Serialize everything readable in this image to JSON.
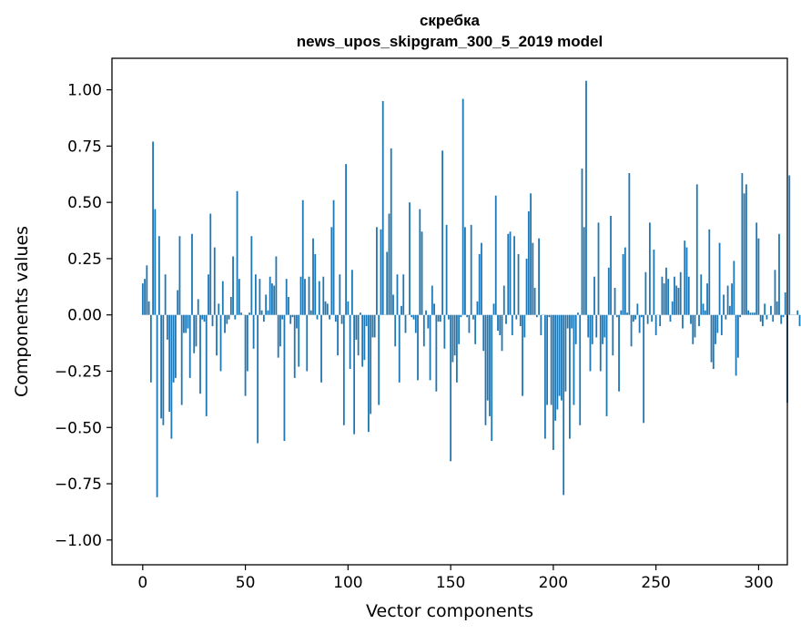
{
  "chart_data": {
    "type": "bar",
    "title": "скребка",
    "subtitle": "news_upos_skipgram_300_5_2019 model",
    "xlabel": "Vector components",
    "ylabel": "Components values",
    "xlim": [
      -15,
      314
    ],
    "ylim": [
      -1.11,
      1.14
    ],
    "xticks": [
      0,
      50,
      100,
      150,
      200,
      250,
      300
    ],
    "xtick_labels": [
      "0",
      "50",
      "100",
      "150",
      "200",
      "250",
      "300"
    ],
    "yticks": [
      1.0,
      0.75,
      0.5,
      0.25,
      0.0,
      -0.25,
      -0.5,
      -0.75,
      -1.0
    ],
    "ytick_labels": [
      "1.00",
      "0.75",
      "0.50",
      "0.25",
      "0.00",
      "−0.25",
      "−0.50",
      "−0.75",
      "−1.00"
    ],
    "bar_color": "#1f77b4",
    "series": [
      {
        "name": "скребка",
        "values": [
          0.14,
          0.16,
          0.22,
          0.06,
          -0.3,
          0.77,
          0.47,
          -0.81,
          0.35,
          -0.46,
          -0.49,
          0.18,
          -0.11,
          -0.43,
          -0.55,
          -0.3,
          -0.28,
          0.11,
          0.35,
          -0.4,
          -0.08,
          -0.08,
          -0.06,
          -0.28,
          0.36,
          -0.17,
          -0.14,
          0.07,
          -0.35,
          -0.02,
          -0.03,
          -0.45,
          0.18,
          0.45,
          -0.05,
          0.3,
          -0.18,
          0.05,
          -0.25,
          0.15,
          -0.08,
          -0.04,
          -0.02,
          0.08,
          0.26,
          -0.02,
          0.55,
          0.16,
          0.01,
          0.0,
          -0.36,
          -0.25,
          0.01,
          0.35,
          -0.15,
          0.18,
          -0.57,
          0.16,
          0.02,
          -0.03,
          0.09,
          0.02,
          0.17,
          0.14,
          0.13,
          0.26,
          -0.19,
          -0.14,
          -0.02,
          -0.56,
          0.16,
          0.08,
          -0.04,
          -0.01,
          -0.28,
          -0.06,
          -0.23,
          0.17,
          0.51,
          0.16,
          -0.25,
          0.17,
          0.02,
          0.34,
          0.27,
          -0.02,
          0.15,
          -0.3,
          0.17,
          0.06,
          0.05,
          -0.02,
          0.39,
          0.51,
          -0.03,
          -0.18,
          0.18,
          -0.04,
          -0.49,
          0.67,
          0.06,
          -0.24,
          0.2,
          -0.53,
          -0.11,
          -0.18,
          0.01,
          -0.23,
          -0.2,
          -0.05,
          -0.52,
          -0.44,
          -0.1,
          -0.1,
          0.39,
          -0.4,
          0.38,
          0.95,
          0.0,
          0.28,
          0.45,
          0.74,
          0.09,
          -0.14,
          0.18,
          -0.3,
          0.04,
          0.18,
          -0.08,
          0.0,
          0.5,
          -0.01,
          -0.02,
          -0.08,
          -0.29,
          0.47,
          0.37,
          -0.14,
          0.02,
          -0.06,
          -0.29,
          0.13,
          0.05,
          -0.34,
          -0.03,
          -0.03,
          0.73,
          -0.15,
          0.4,
          -0.02,
          -0.65,
          -0.21,
          -0.18,
          -0.3,
          -0.13,
          -0.01,
          0.96,
          0.39,
          -0.01,
          -0.08,
          0.4,
          -0.02,
          -0.13,
          0.06,
          0.27,
          0.32,
          -0.16,
          -0.49,
          -0.38,
          -0.45,
          -0.56,
          0.05,
          0.53,
          -0.07,
          -0.09,
          -0.16,
          0.13,
          -0.04,
          0.36,
          0.37,
          -0.09,
          0.35,
          -0.02,
          0.27,
          -0.05,
          -0.36,
          -0.1,
          0.25,
          0.46,
          0.54,
          0.32,
          0.12,
          -0.01,
          0.34,
          -0.09,
          0.0,
          -0.55,
          -0.4,
          -0.01,
          -0.4,
          -0.6,
          -0.47,
          -0.42,
          -0.36,
          -0.38,
          -0.8,
          -0.34,
          -0.06,
          -0.55,
          -0.06,
          -0.4,
          -0.13,
          0.01,
          -0.49,
          0.65,
          0.39,
          1.04,
          -0.1,
          -0.25,
          -0.13,
          0.17,
          -0.1,
          0.41,
          -0.25,
          -0.13,
          -0.1,
          -0.45,
          0.21,
          0.44,
          -0.18,
          0.12,
          -0.01,
          -0.34,
          0.02,
          0.27,
          0.3,
          0.01,
          0.63,
          -0.14,
          -0.03,
          -0.02,
          0.05,
          -0.08,
          -0.01,
          -0.48,
          0.19,
          -0.04,
          0.41,
          -0.03,
          0.29,
          -0.09,
          0.0,
          -0.05,
          0.17,
          0.14,
          0.21,
          0.16,
          -0.03,
          0.06,
          0.17,
          0.13,
          0.12,
          0.19,
          -0.06,
          0.33,
          0.3,
          0.17,
          -0.04,
          -0.13,
          -0.1,
          0.58,
          -0.05,
          0.18,
          0.05,
          0.02,
          0.14,
          0.38,
          -0.21,
          -0.24,
          -0.13,
          -0.08,
          0.32,
          -0.09,
          0.09,
          -0.02,
          0.13,
          0.04,
          0.14,
          0.24,
          -0.27,
          -0.19,
          -0.01,
          0.63,
          0.54,
          0.58,
          0.02,
          0.01,
          0.01,
          0.01,
          0.41,
          0.34,
          -0.03,
          -0.05,
          0.05,
          -0.02,
          0.0,
          0.04,
          -0.03,
          0.2,
          0.06,
          0.36,
          -0.04,
          -0.01,
          0.1,
          -0.39,
          0.62,
          0.0,
          0.0,
          0.0,
          0.02,
          -0.05,
          0.0
        ]
      }
    ]
  }
}
